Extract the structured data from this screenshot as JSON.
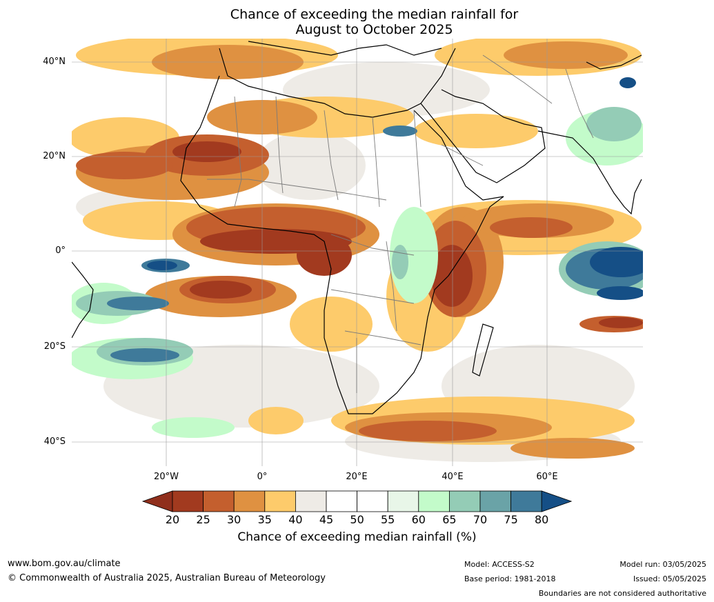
{
  "title": {
    "line1": "Chance of exceeding the median rainfall for",
    "line2": "August to October 2025"
  },
  "map": {
    "region": "Africa and surrounding oceans",
    "latitude_labels": [
      "40°N",
      "20°N",
      "0°",
      "20°S",
      "40°S"
    ],
    "longitude_labels": [
      "20°W",
      "0°",
      "20°E",
      "40°E",
      "60°E"
    ],
    "gridlines": true
  },
  "colorbar": {
    "label": "Chance of exceeding median rainfall (%)",
    "ticks": [
      "20",
      "25",
      "30",
      "35",
      "40",
      "45",
      "50",
      "55",
      "60",
      "65",
      "70",
      "75",
      "80"
    ],
    "colors": [
      "#a23a1f",
      "#c45f2e",
      "#df9141",
      "#fdcb6b",
      "#eeebe6",
      "#ffffff",
      "#ffffff",
      "#e8f6e8",
      "#c3fbca",
      "#94ccb6",
      "#6aa3a7",
      "#3f7a9a"
    ],
    "under_color": "#902f1c",
    "over_color": "#154f86"
  },
  "footer": {
    "website": "www.bom.gov.au/climate",
    "copyright": "© Commonwealth of Australia 2025, Australian Bureau of Meteorology",
    "model": "Model: ACCESS-S2",
    "base_period": "Base period: 1981-2018",
    "model_run": "Model run: 03/05/2025",
    "issued": "Issued: 05/05/2025",
    "boundaries_note": "Boundaries are not considered authoritative"
  }
}
